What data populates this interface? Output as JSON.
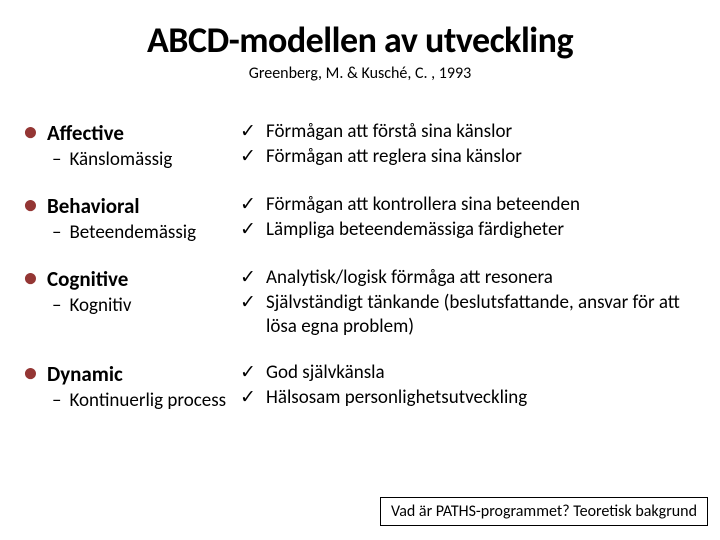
{
  "title": "ABCD-modellen av utveckling",
  "subtitle": "Greenberg, M. & Kusché, C. , 1993",
  "rows": [
    {
      "main": "Affective",
      "sub": "Känslomässig",
      "checks": [
        "Förmågan att förstå sina känslor",
        "Förmågan att reglera sina känslor"
      ]
    },
    {
      "main": "Behavioral",
      "sub": "Beteendemässig",
      "checks": [
        "Förmågan att kontrollera sina beteenden",
        "Lämpliga beteendemässiga färdigheter"
      ]
    },
    {
      "main": "Cognitive",
      "sub": "Kognitiv",
      "checks": [
        "Analytisk/logisk förmåga att resonera",
        "Självständigt tänkande (beslutsfattande, ansvar för att lösa egna problem)"
      ]
    },
    {
      "main": "Dynamic",
      "sub": "Kontinuerlig process",
      "checks": [
        "God självkänsla",
        "Hälsosam personlighetsutveckling"
      ]
    }
  ],
  "footer": "Vad är PATHS-programmet? Teoretisk bakgrund",
  "colors": {
    "bullet": "#943634",
    "text": "#000000",
    "bg": "#ffffff"
  }
}
